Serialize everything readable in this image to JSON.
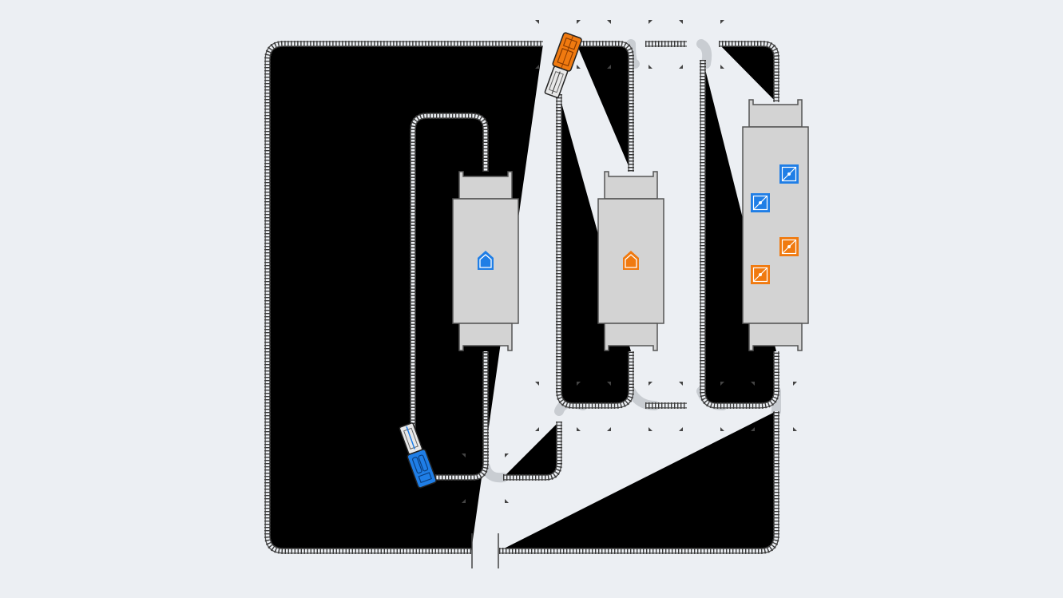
{
  "colors": {
    "background": "#eceff3",
    "blue": "#1f7ee6",
    "orange": "#f07a10",
    "station": "#d3d3d3",
    "track": "#3a3a3a"
  },
  "stations": [
    {
      "name": "home-station-blue",
      "icon": "house-icon",
      "color": "#1f7ee6"
    },
    {
      "name": "home-station-orange",
      "icon": "house-icon",
      "color": "#f07a10"
    },
    {
      "name": "cargo-station",
      "icon": "crate-icon",
      "crates": [
        "#1f7ee6",
        "#1f7ee6",
        "#f07a10",
        "#f07a10"
      ]
    }
  ],
  "trains": [
    {
      "name": "train-orange",
      "color": "#f07a10"
    },
    {
      "name": "train-blue",
      "color": "#1f7ee6"
    }
  ]
}
